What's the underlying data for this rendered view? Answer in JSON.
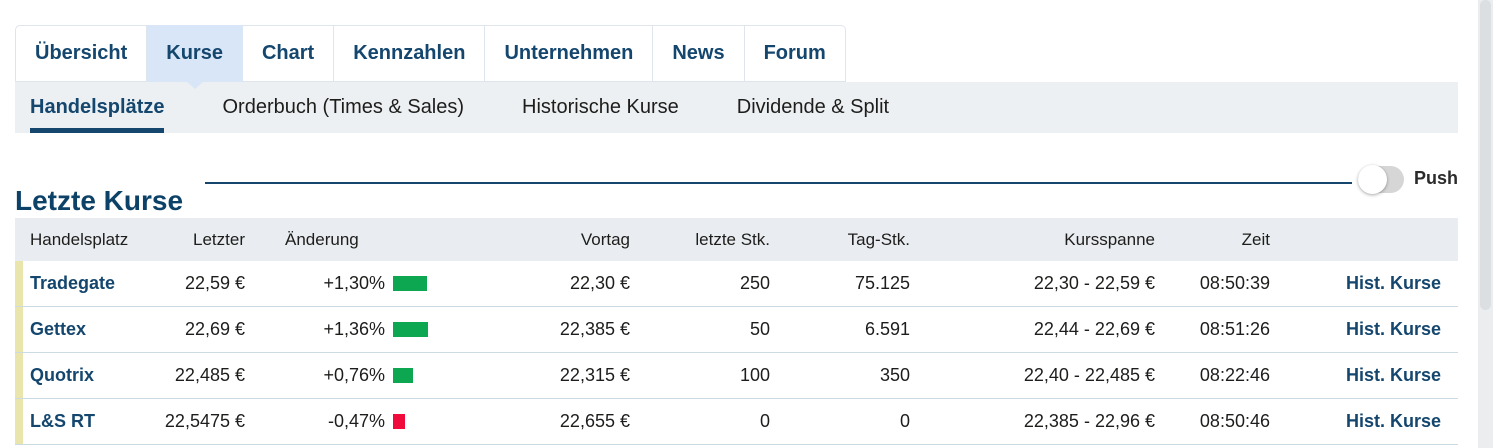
{
  "nav": {
    "tabs": [
      {
        "label": "Übersicht",
        "active": false
      },
      {
        "label": "Kurse",
        "active": true
      },
      {
        "label": "Chart",
        "active": false
      },
      {
        "label": "Kennzahlen",
        "active": false
      },
      {
        "label": "Unternehmen",
        "active": false
      },
      {
        "label": "News",
        "active": false
      },
      {
        "label": "Forum",
        "active": false
      }
    ]
  },
  "subnav": {
    "items": [
      {
        "label": "Handelsplätze",
        "active": true
      },
      {
        "label": "Orderbuch (Times & Sales)",
        "active": false
      },
      {
        "label": "Historische Kurse",
        "active": false
      },
      {
        "label": "Dividende & Split",
        "active": false
      }
    ]
  },
  "section": {
    "title": "Letzte Kurse",
    "push_label": "Push",
    "push_state": "off"
  },
  "table": {
    "headers": {
      "venue": "Handelsplatz",
      "last": "Letzter",
      "change": "Änderung",
      "prev_close": "Vortag",
      "last_qty": "letzte Stk.",
      "day_qty": "Tag-Stk.",
      "range": "Kursspanne",
      "time": "Zeit"
    },
    "history_link_label": "Hist. Kurse",
    "rows": [
      {
        "venue": "Tradegate",
        "last": "22,59 €",
        "change": "+1,30%",
        "change_pct": 1.3,
        "direction": "up",
        "prev_close": "22,30 €",
        "last_qty": "250",
        "day_qty": "75.125",
        "range": "22,30 - 22,59 €",
        "time": "08:50:39"
      },
      {
        "venue": "Gettex",
        "last": "22,69 €",
        "change": "+1,36%",
        "change_pct": 1.36,
        "direction": "up",
        "prev_close": "22,385 €",
        "last_qty": "50",
        "day_qty": "6.591",
        "range": "22,44 - 22,69 €",
        "time": "08:51:26"
      },
      {
        "venue": "Quotrix",
        "last": "22,485 €",
        "change": "+0,76%",
        "change_pct": 0.76,
        "direction": "up",
        "prev_close": "22,315 €",
        "last_qty": "100",
        "day_qty": "350",
        "range": "22,40 - 22,485 €",
        "time": "08:22:46"
      },
      {
        "venue": "L&S RT",
        "last": "22,5475 €",
        "change": "-0,47%",
        "change_pct": -0.47,
        "direction": "down",
        "prev_close": "22,655 €",
        "last_qty": "0",
        "day_qty": "0",
        "range": "22,385 - 22,96 €",
        "time": "08:50:46"
      }
    ]
  },
  "colors": {
    "accent_navy": "#14466e",
    "positive_green": "#0ca750",
    "negative_red": "#f10a3c",
    "active_tab_bg": "#d9e6f7",
    "row_marker": "#e9e5ac"
  }
}
